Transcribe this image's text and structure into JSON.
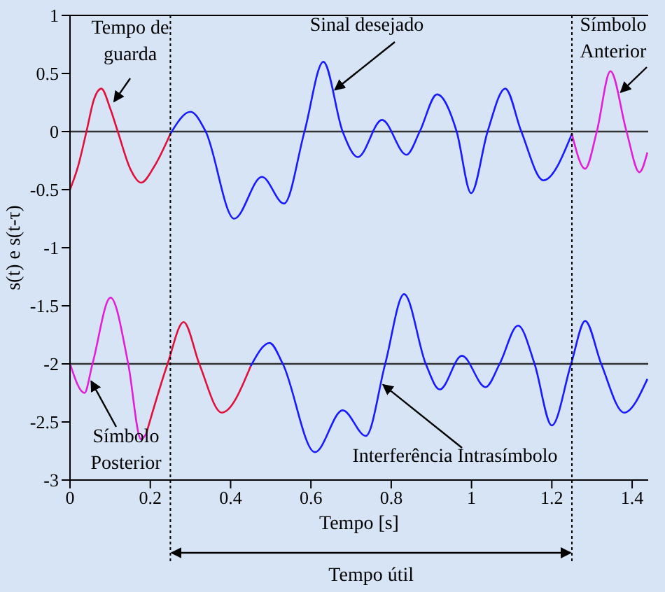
{
  "chart_data": {
    "type": "line",
    "xlabel": "Tempo [s]",
    "ylabel": "s(t) e s(t-τ)",
    "xlim": [
      0,
      1.44
    ],
    "xticks": [
      0,
      0.2,
      0.4,
      0.6,
      0.8,
      1,
      1.2,
      1.4
    ],
    "ylim": [
      -3,
      1
    ],
    "yticks": [
      -3,
      -2.5,
      -2,
      -1.5,
      -1,
      -0.5,
      0,
      0.5,
      1
    ],
    "grid": false,
    "marker": "none",
    "line_style": "solid",
    "series": [
      {
        "color": "#e0103c",
        "x": [
          0,
          0.02,
          0.041,
          0.06,
          0.078,
          0.1,
          0.119,
          0.15,
          0.177,
          0.21,
          0.25
        ],
        "values": [
          -0.5,
          -0.3,
          0,
          0.28,
          0.37,
          0.2,
          0,
          -0.32,
          -0.44,
          -0.3,
          -0.02
        ]
      },
      {
        "color": "#1a1aff",
        "x": [
          0.25,
          0.3,
          0.338,
          0.409,
          0.478,
          0.533,
          0.584,
          0.631,
          0.679,
          0.717,
          0.777,
          0.838,
          0.871,
          0.914,
          0.963,
          0.999,
          1.04,
          1.084,
          1.124,
          1.179,
          1.25
        ],
        "values": [
          -0.02,
          0.17,
          0,
          -0.75,
          -0.39,
          -0.62,
          0,
          0.6,
          0,
          -0.22,
          0.1,
          -0.2,
          0,
          0.32,
          0,
          -0.53,
          0,
          0.37,
          0,
          -0.42,
          -0.02
        ]
      },
      {
        "color": "#e020d8",
        "x": [
          1.25,
          1.283,
          1.312,
          1.346,
          1.386,
          1.418,
          1.438
        ],
        "values": [
          -0.02,
          -0.32,
          0,
          0.52,
          0,
          -0.35,
          -0.18
        ]
      },
      {
        "color": "#e020d8",
        "x": [
          0,
          0.036,
          0.056,
          0.101,
          0.145,
          0.177,
          0.19
        ],
        "values": [
          -2,
          -2.25,
          -2,
          -1.43,
          -2,
          -2.65,
          -2.6
        ]
      },
      {
        "color": "#e0103c",
        "x": [
          0.19,
          0.243,
          0.283,
          0.322,
          0.378,
          0.45
        ],
        "values": [
          -2.6,
          -2,
          -1.64,
          -2,
          -2.42,
          -2.02
        ]
      },
      {
        "color": "#1a1aff",
        "x": [
          0.45,
          0.497,
          0.53,
          0.61,
          0.679,
          0.737,
          0.785,
          0.832,
          0.886,
          0.921,
          0.976,
          1.035,
          1.07,
          1.116,
          1.157,
          1.2,
          1.248,
          1.283,
          1.323,
          1.38,
          1.438
        ],
        "values": [
          -2.02,
          -1.82,
          -2,
          -2.76,
          -2.4,
          -2.62,
          -2,
          -1.4,
          -2,
          -2.22,
          -1.93,
          -2.2,
          -2,
          -1.67,
          -2,
          -2.53,
          -2,
          -1.63,
          -2,
          -2.42,
          -2.13
        ]
      }
    ],
    "ref_lines": [
      {
        "axis": "y",
        "value": 0,
        "color": "#333333",
        "line_style": "solid"
      },
      {
        "axis": "y",
        "value": -2,
        "color": "#333333",
        "line_style": "solid"
      },
      {
        "axis": "x",
        "value": 0.25,
        "color": "#000000",
        "line_style": "dotted"
      },
      {
        "axis": "x",
        "value": 1.25,
        "color": "#000000",
        "line_style": "dotted"
      }
    ],
    "annotations": [
      {
        "text": "Tempo de guarda",
        "x": 0.11,
        "y": 0.26
      },
      {
        "text": "Sinal desejado",
        "x": 0.66,
        "y": 0.36
      },
      {
        "text": "Símbolo Anterior",
        "x": 1.372,
        "y": 0.34
      },
      {
        "text": "Símbolo Posterior",
        "x": 0.053,
        "y": -2.15
      },
      {
        "text": "Interferência Intrasímbolo",
        "x": 0.78,
        "y": -2.18
      },
      "Tempo útil"
    ]
  }
}
